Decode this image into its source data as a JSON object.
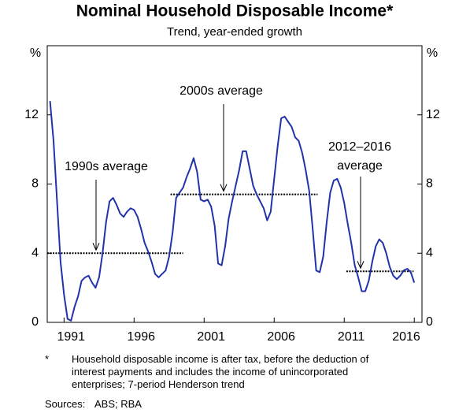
{
  "chart_data": {
    "type": "line",
    "title": "Nominal Household Disposable Income*",
    "subtitle": "Trend, year-ended growth",
    "y_label": "%",
    "y2_label": "%",
    "xlim": [
      1989.8,
      2016.55
    ],
    "xticks": [
      1991,
      1996,
      2001,
      2006,
      2011,
      2016
    ],
    "ylim": [
      0,
      16
    ],
    "yticks": [
      0,
      4,
      8,
      12
    ],
    "y2lim": [
      0,
      16
    ],
    "y2ticks": [
      0,
      4,
      8,
      12
    ],
    "grid": false,
    "x": [
      1990,
      1990.25,
      1990.5,
      1990.75,
      1991,
      1991.25,
      1991.5,
      1991.75,
      1992,
      1992.25,
      1992.5,
      1992.75,
      1993,
      1993.25,
      1993.5,
      1993.75,
      1994,
      1994.25,
      1994.5,
      1994.75,
      1995,
      1995.25,
      1995.5,
      1995.75,
      1996,
      1996.25,
      1996.5,
      1996.75,
      1997,
      1997.25,
      1997.5,
      1997.75,
      1998,
      1998.25,
      1998.5,
      1998.75,
      1999,
      1999.25,
      1999.5,
      1999.75,
      2000,
      2000.25,
      2000.5,
      2000.75,
      2001,
      2001.25,
      2001.5,
      2001.75,
      2002,
      2002.25,
      2002.5,
      2002.75,
      2003,
      2003.25,
      2003.5,
      2003.75,
      2004,
      2004.25,
      2004.5,
      2004.75,
      2005,
      2005.25,
      2005.5,
      2005.75,
      2006,
      2006.25,
      2006.5,
      2006.75,
      2007,
      2007.25,
      2007.5,
      2007.75,
      2008,
      2008.25,
      2008.5,
      2008.75,
      2009,
      2009.25,
      2009.5,
      2009.75,
      2010,
      2010.25,
      2010.5,
      2010.75,
      2011,
      2011.25,
      2011.5,
      2011.75,
      2012,
      2012.25,
      2012.5,
      2012.75,
      2013,
      2013.25,
      2013.5,
      2013.75,
      2014,
      2014.25,
      2014.5,
      2014.75,
      2015,
      2015.25,
      2015.5,
      2015.75,
      2016
    ],
    "series": [
      {
        "name": "Nominal household disposable income",
        "color": "#2233aa",
        "values": [
          12.8,
          10.5,
          7.0,
          3.5,
          1.6,
          0.2,
          0.1,
          0.9,
          1.5,
          2.4,
          2.6,
          2.7,
          2.3,
          2.0,
          2.6,
          4.0,
          5.8,
          7.0,
          7.2,
          6.8,
          6.3,
          6.1,
          6.4,
          6.6,
          6.5,
          6.1,
          5.4,
          4.6,
          4.1,
          3.5,
          2.8,
          2.6,
          2.8,
          3.0,
          3.8,
          5.2,
          7.2,
          7.5,
          7.8,
          8.4,
          8.9,
          9.5,
          8.7,
          7.1,
          7.0,
          7.1,
          6.7,
          5.6,
          3.4,
          3.3,
          4.4,
          6.0,
          7.0,
          7.9,
          8.8,
          9.9,
          9.9,
          8.9,
          7.9,
          7.4,
          7.0,
          6.6,
          5.9,
          6.4,
          8.3,
          10.2,
          11.8,
          11.9,
          11.6,
          11.3,
          10.7,
          10.5,
          9.8,
          8.8,
          7.6,
          5.4,
          3.0,
          2.9,
          3.8,
          5.8,
          7.5,
          8.2,
          8.3,
          7.8,
          6.9,
          5.7,
          4.6,
          3.3,
          2.6,
          1.8,
          1.8,
          2.4,
          3.5,
          4.4,
          4.8,
          4.6,
          4.0,
          3.2,
          2.7,
          2.5,
          2.7,
          3.0,
          3.1,
          2.9,
          2.3
        ]
      }
    ],
    "averages": [
      {
        "label": [
          "1990s average"
        ],
        "value": 4.0,
        "x": [
          1989.8,
          1999.5
        ]
      },
      {
        "label": [
          "2000s average"
        ],
        "value": 7.4,
        "x": [
          1998.6,
          2009.1
        ]
      },
      {
        "label": [
          "2012–2016",
          "average"
        ],
        "value": 2.95,
        "x": [
          2011.15,
          2015.95
        ]
      }
    ],
    "footnote_marker": "*",
    "footnote": [
      "Household disposable income is after tax, before the deduction of",
      "interest payments and includes the income of unincorporated",
      "enterprises; 7-period Henderson trend"
    ],
    "sources_label": "Sources:",
    "sources": "ABS; RBA"
  }
}
